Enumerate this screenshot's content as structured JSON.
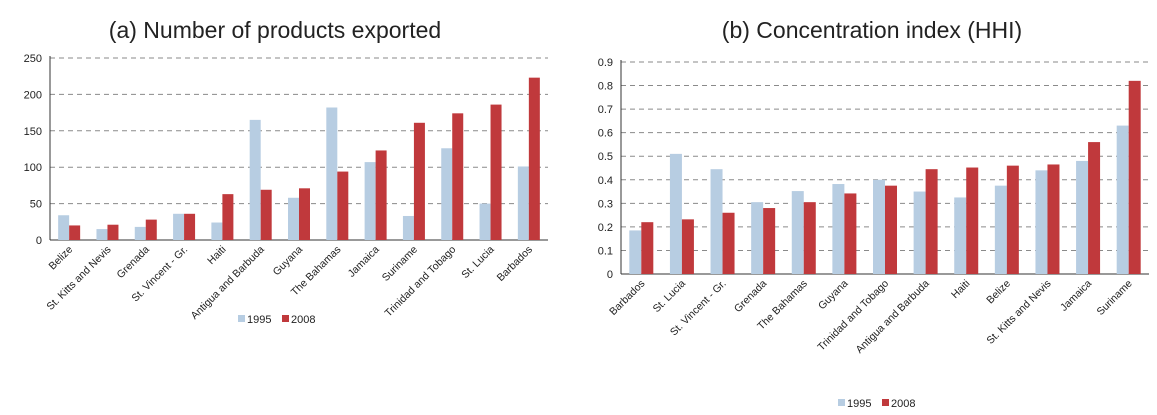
{
  "chart_data": [
    {
      "type": "bar",
      "title": "(a) Number of products exported",
      "categories": [
        "Belize",
        "St. Kitts and Nevis",
        "Grenada",
        "St. Vincent - Gr.",
        "Haiti",
        "Antigua and Barbuda",
        "Guyana",
        "The Bahamas",
        "Jamaica",
        "Suriname",
        "Trinidad and Tobago",
        "St. Lucia",
        "Barbados"
      ],
      "series": [
        {
          "name": "1995",
          "color": "#b7cde2",
          "values": [
            34,
            15,
            18,
            36,
            24,
            165,
            58,
            182,
            107,
            33,
            126,
            50,
            101
          ]
        },
        {
          "name": "2008",
          "color": "#c0393c",
          "values": [
            20,
            21,
            28,
            36,
            63,
            69,
            71,
            94,
            123,
            161,
            174,
            186,
            223
          ]
        }
      ],
      "ylim": [
        0,
        250
      ],
      "yticks": [
        "0",
        "50",
        "100",
        "150",
        "200",
        "250"
      ],
      "grid": true,
      "legend": "bottom"
    },
    {
      "type": "bar",
      "title": "(b) Concentration index (HHI)",
      "categories": [
        "Barbados",
        "St. Lucia",
        "St. Vincent - Gr.",
        "Grenada",
        "The Bahamas",
        "Guyana",
        "Trinidad and Tobago",
        "Antigua and Barbuda",
        "Haiti",
        "Belize",
        "St. Kitts and Nevis",
        "Jamaica",
        "Suriname"
      ],
      "series": [
        {
          "name": "1995",
          "color": "#b7cde2",
          "values": [
            0.185,
            0.51,
            0.445,
            0.305,
            0.352,
            0.382,
            0.4,
            0.35,
            0.325,
            0.375,
            0.44,
            0.48,
            0.63
          ]
        },
        {
          "name": "2008",
          "color": "#c0393c",
          "values": [
            0.22,
            0.232,
            0.26,
            0.28,
            0.305,
            0.342,
            0.375,
            0.445,
            0.452,
            0.46,
            0.465,
            0.56,
            0.82
          ]
        }
      ],
      "ylim": [
        0,
        0.9
      ],
      "yticks": [
        "0",
        "0.1",
        "0.2",
        "0.3",
        "0.4",
        "0.5",
        "0.6",
        "0.7",
        "0.8",
        "0.9"
      ],
      "grid": true,
      "legend": "bottom"
    }
  ]
}
